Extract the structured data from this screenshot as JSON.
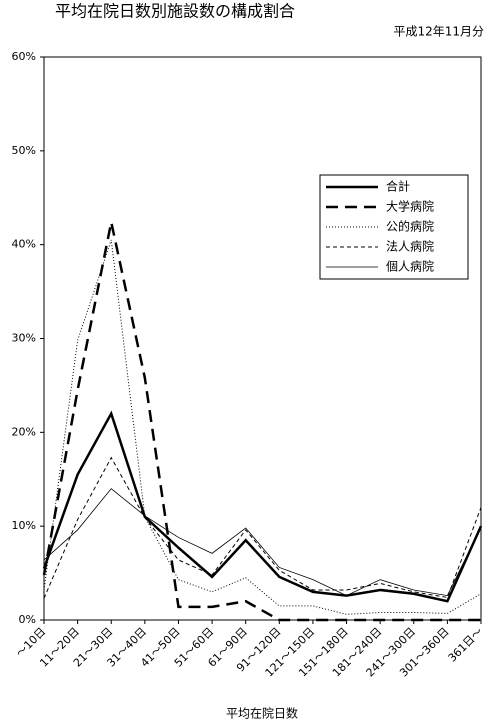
{
  "chart_data": {
    "type": "line",
    "title": "平均在院日数別施設数の構成割合",
    "subtitle": "平成12年11月分",
    "x_label": "平均在院日数",
    "categories": [
      "～10日",
      "11～20日",
      "21～30日",
      "31～40日",
      "41～50日",
      "51～60日",
      "61～90日",
      "91～120日",
      "121～150日",
      "151～180日",
      "181～240日",
      "241～300日",
      "301～360日",
      "361日～"
    ],
    "ylim": [
      0,
      60
    ],
    "yticks": [
      {
        "value": 0,
        "label": "0%"
      },
      {
        "value": 10,
        "label": "10%"
      },
      {
        "value": 20,
        "label": "20%"
      },
      {
        "value": 30,
        "label": "30%"
      },
      {
        "value": 40,
        "label": "40%"
      },
      {
        "value": 50,
        "label": "50%"
      },
      {
        "value": 60,
        "label": "60%"
      }
    ],
    "series": [
      {
        "name": "合計",
        "color": "#000000",
        "values": [
          5.5,
          15.5,
          22,
          11,
          7.7,
          4.6,
          8.5,
          4.6,
          3,
          2.6,
          3.2,
          2.8,
          2,
          10
        ]
      },
      {
        "name": "大学病院",
        "color": "#000000",
        "values": [
          4.8,
          24.5,
          42.4,
          25.8,
          1.4,
          1.4,
          2,
          0,
          0,
          0,
          0,
          0,
          0,
          0
        ]
      },
      {
        "name": "公的病院",
        "color": "#000000",
        "values": [
          3.2,
          29.8,
          40.5,
          11,
          4.3,
          3,
          4.5,
          1.5,
          1.5,
          0.6,
          0.8,
          0.8,
          0.7,
          2.8
        ]
      },
      {
        "name": "法人病院",
        "color": "#000000",
        "values": [
          2.3,
          10.7,
          17.3,
          10.9,
          6.4,
          4.8,
          9.6,
          5.3,
          3.2,
          3.2,
          3.9,
          3,
          2.4,
          12
        ]
      },
      {
        "name": "個人病院",
        "color": "#000000",
        "values": [
          6.4,
          9.6,
          14,
          11.1,
          8.8,
          7.1,
          9.8,
          5.6,
          4.3,
          2.6,
          4.3,
          3.2,
          2.6,
          9.9
        ]
      }
    ]
  }
}
